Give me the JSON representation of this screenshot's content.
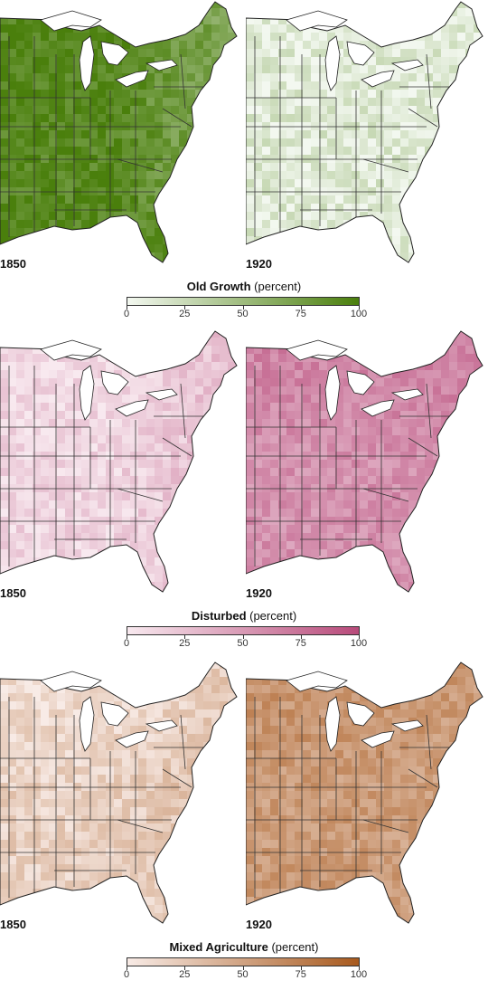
{
  "maps": [
    {
      "id": "old-growth",
      "legend_title": "Old Growth",
      "legend_unit": "(percent)",
      "ticks": [
        "0",
        "25",
        "50",
        "75",
        "100"
      ],
      "color_low": "#f3f8f0",
      "color_high": "#4a7f0c",
      "panels": [
        {
          "year": "1850",
          "level": 0.92,
          "north_level": 0.95,
          "east_level": 0.55
        },
        {
          "year": "1920",
          "level": 0.12,
          "north_level": 0.1,
          "east_level": 0.12
        }
      ]
    },
    {
      "id": "disturbed",
      "legend_title": "Disturbed",
      "legend_unit": "(percent)",
      "ticks": [
        "0",
        "25",
        "50",
        "75",
        "100"
      ],
      "color_low": "#f8e9ef",
      "color_high": "#b84a7a",
      "panels": [
        {
          "year": "1850",
          "level": 0.12,
          "north_level": 0.08,
          "east_level": 0.35
        },
        {
          "year": "1920",
          "level": 0.55,
          "north_level": 0.65,
          "east_level": 0.6
        }
      ]
    },
    {
      "id": "mixed-agriculture",
      "legend_title": "Mixed Agriculture",
      "legend_unit": "(percent)",
      "ticks": [
        "0",
        "25",
        "50",
        "75",
        "100"
      ],
      "color_low": "#f8ebe6",
      "color_high": "#a85a1e",
      "panels": [
        {
          "year": "1850",
          "level": 0.18,
          "north_level": 0.08,
          "east_level": 0.35
        },
        {
          "year": "1920",
          "level": 0.55,
          "north_level": 0.62,
          "east_level": 0.5
        }
      ]
    }
  ]
}
